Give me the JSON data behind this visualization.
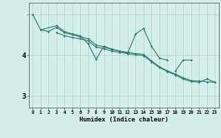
{
  "xlabel": "Humidex (Indice chaleur)",
  "x_values": [
    0,
    1,
    2,
    3,
    4,
    5,
    6,
    7,
    8,
    9,
    10,
    11,
    12,
    13,
    14,
    15,
    16,
    17,
    18,
    19,
    20,
    21,
    22,
    23
  ],
  "line1": [
    5.0,
    4.62,
    null,
    4.72,
    4.58,
    4.52,
    4.47,
    4.28,
    3.9,
    4.22,
    4.15,
    4.1,
    4.05,
    4.52,
    4.65,
    4.22,
    3.93,
    3.88,
    null,
    null,
    null,
    null,
    null,
    null
  ],
  "line2": [
    null,
    4.62,
    4.58,
    4.68,
    4.55,
    4.5,
    4.45,
    4.4,
    4.25,
    4.2,
    4.14,
    4.1,
    4.07,
    4.04,
    4.02,
    3.86,
    3.72,
    3.62,
    3.54,
    3.45,
    3.38,
    3.37,
    3.35,
    3.34
  ],
  "line3": [
    null,
    null,
    null,
    4.55,
    4.48,
    4.43,
    4.4,
    4.35,
    4.2,
    4.16,
    4.1,
    4.07,
    4.04,
    4.01,
    3.99,
    3.84,
    3.7,
    3.6,
    3.52,
    3.42,
    3.36,
    3.34,
    3.42,
    3.34
  ],
  "line4": [
    null,
    null,
    null,
    null,
    null,
    null,
    null,
    null,
    null,
    null,
    null,
    null,
    null,
    null,
    null,
    null,
    null,
    null,
    3.61,
    3.88,
    3.88,
    null,
    null,
    null
  ],
  "line_color": "#2e7d6e",
  "bg_color": "#d4eeeb",
  "grid_color": "#aed4cf",
  "ylim_min": 2.72,
  "ylim_max": 5.28,
  "ytick_positions": [
    3,
    4,
    5
  ],
  "ytick_labels": [
    "3",
    "4",
    ""
  ],
  "xlim_min": -0.5,
  "xlim_max": 23.5
}
